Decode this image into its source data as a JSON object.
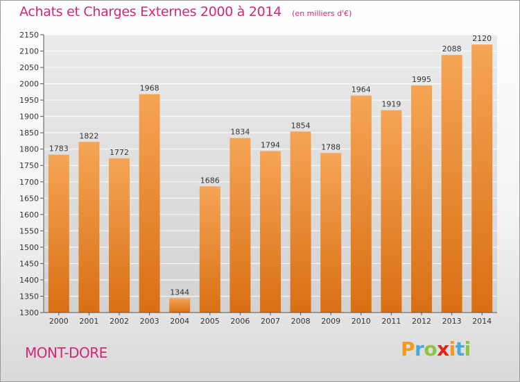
{
  "header": {
    "title": "Achats et Charges Externes 2000 à 2014",
    "unit": "(en milliers d'€)"
  },
  "footer": {
    "city": "MONT-DORE",
    "logo": {
      "letters": [
        "P",
        "r",
        "o",
        "x",
        "i",
        "t",
        "i"
      ],
      "colors": [
        "#f39a1c",
        "#4aa9dc",
        "#8cc63f",
        "#e2231a",
        "#f39a1c",
        "#4aa9dc",
        "#8cc63f"
      ]
    }
  },
  "colors": {
    "bar_light": "#f5a555",
    "bar_dark": "#d96f14",
    "grid": "#ffffff",
    "plot_bg": "#dcdcdc",
    "text": "#333333"
  },
  "chart_data": {
    "type": "bar",
    "title": "Achats et Charges Externes 2000 à 2014",
    "subtitle": "(en milliers d'€)",
    "categories": [
      "2000",
      "2001",
      "2002",
      "2003",
      "2004",
      "2005",
      "2006",
      "2007",
      "2008",
      "2009",
      "2010",
      "2011",
      "2012",
      "2013",
      "2014"
    ],
    "values": [
      1783,
      1822,
      1772,
      1968,
      1344,
      1686,
      1834,
      1794,
      1854,
      1788,
      1964,
      1919,
      1995,
      2088,
      2120
    ],
    "ylim": [
      1300,
      2150
    ],
    "yticks": [
      1300,
      1350,
      1400,
      1450,
      1500,
      1550,
      1600,
      1650,
      1700,
      1750,
      1800,
      1850,
      1900,
      1950,
      2000,
      2050,
      2100,
      2150
    ],
    "grid": true,
    "show_data_labels": true
  }
}
